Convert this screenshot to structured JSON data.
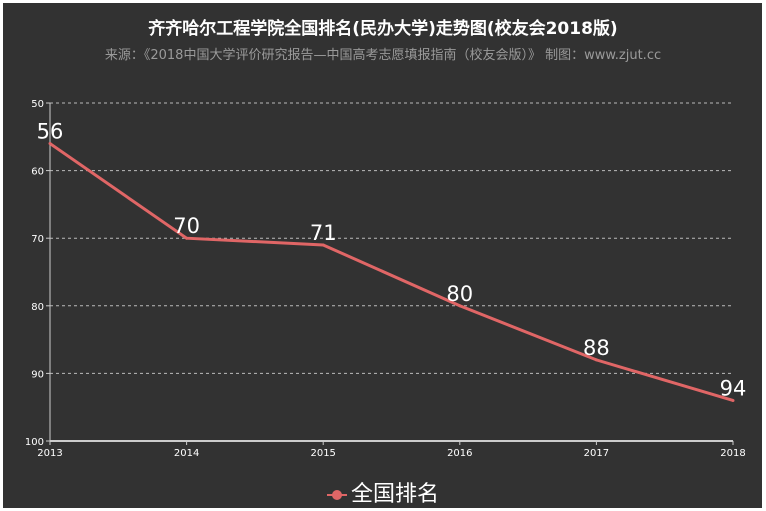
{
  "chart_data": {
    "type": "line",
    "title": "齐齐哈尔工程学院全国排名(民办大学)走势图(校友会2018版)",
    "subtitle": "来源：《2018中国大学评价研究报告—中国高考志愿填报指南（校友会版）》 制图：www.zjut.cc",
    "categories": [
      "2013",
      "2014",
      "2015",
      "2016",
      "2017",
      "2018"
    ],
    "series": [
      {
        "name": "全国排名",
        "values": [
          56,
          70,
          71,
          80,
          88,
          94
        ],
        "color": "#e06666"
      }
    ],
    "ylim": [
      50,
      100
    ],
    "y_inverted": true,
    "yticks": [
      "50",
      "60",
      "70",
      "80",
      "90",
      "100"
    ],
    "grid": true,
    "legend": "bottom",
    "background": "#323232"
  }
}
